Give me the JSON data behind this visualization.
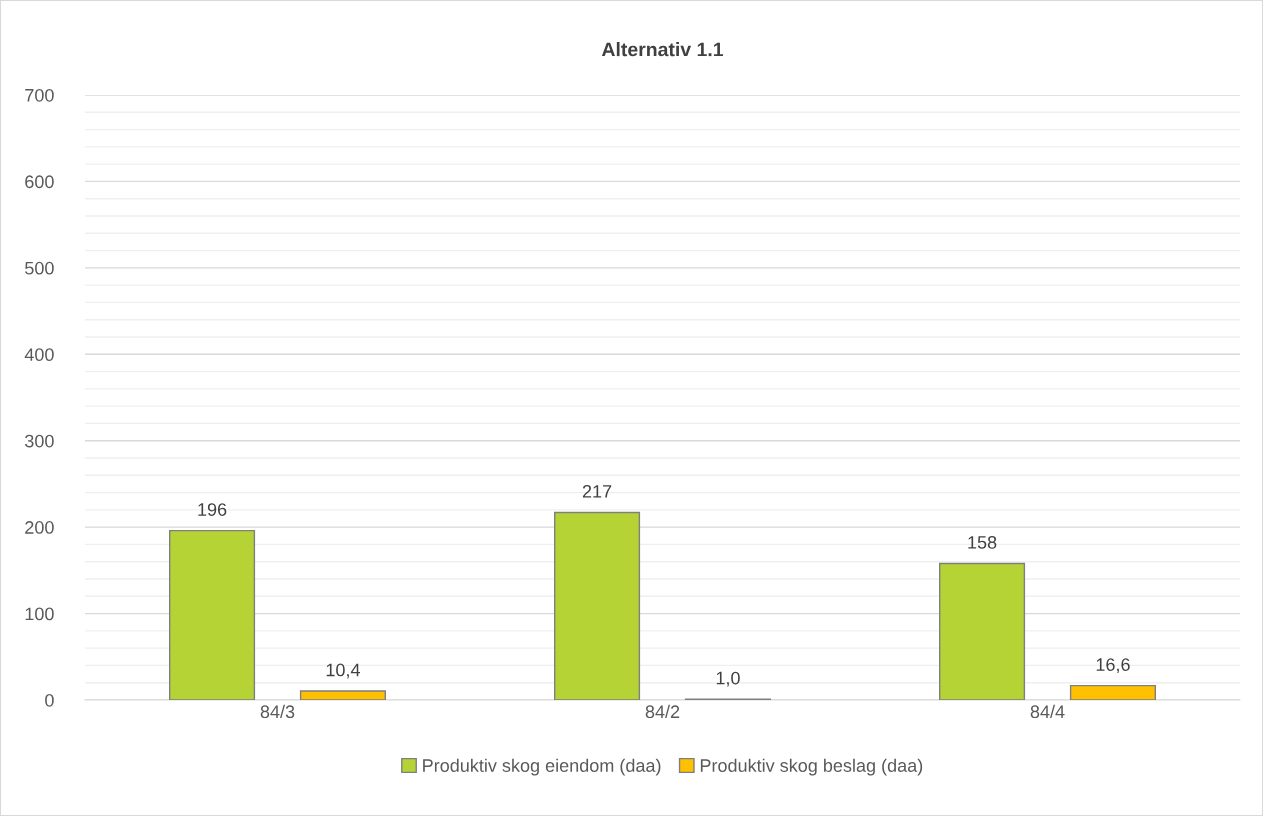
{
  "chart_data": {
    "type": "bar",
    "title": "Alternativ 1.1",
    "categories": [
      "84/3",
      "84/2",
      "84/4"
    ],
    "series": [
      {
        "name": "Produktiv skog eiendom (daa)",
        "color": "#b5d334",
        "values": [
          196,
          217,
          158
        ],
        "value_labels": [
          "196",
          "217",
          "158"
        ]
      },
      {
        "name": "Produktiv skog beslag (daa)",
        "color": "#ffc000",
        "values": [
          10.4,
          1.0,
          16.6
        ],
        "value_labels": [
          "10,4",
          "1,0",
          "16,6"
        ]
      }
    ],
    "ylim": [
      0,
      700
    ],
    "yticks": [
      0,
      {
        "value": 20,
        "label": null
      },
      {
        "value": 40,
        "label": null
      },
      {
        "value": 60,
        "label": null
      },
      {
        "value": 80,
        "label": null
      },
      100,
      {
        "value": 120,
        "label": null
      },
      {
        "value": 140,
        "label": null
      },
      {
        "value": 160,
        "label": null
      },
      {
        "value": 180,
        "label": null
      },
      200,
      {
        "value": 220,
        "label": null
      },
      {
        "value": 240,
        "label": null
      },
      {
        "value": 260,
        "label": null
      },
      {
        "value": 280,
        "label": null
      },
      300,
      {
        "value": 320,
        "label": null
      },
      {
        "value": 340,
        "label": null
      },
      {
        "value": 360,
        "label": null
      },
      {
        "value": 380,
        "label": null
      },
      400,
      {
        "value": 420,
        "label": null
      },
      {
        "value": 440,
        "label": null
      },
      {
        "value": 460,
        "label": null
      },
      {
        "value": 480,
        "label": null
      },
      500,
      {
        "value": 520,
        "label": null
      },
      {
        "value": 540,
        "label": null
      },
      {
        "value": 560,
        "label": null
      },
      {
        "value": 580,
        "label": null
      },
      600,
      {
        "value": 620,
        "label": null
      },
      {
        "value": 640,
        "label": null
      },
      {
        "value": 660,
        "label": null
      },
      {
        "value": 680,
        "label": null
      },
      700
    ],
    "grid": "y",
    "legend": "bottom"
  }
}
